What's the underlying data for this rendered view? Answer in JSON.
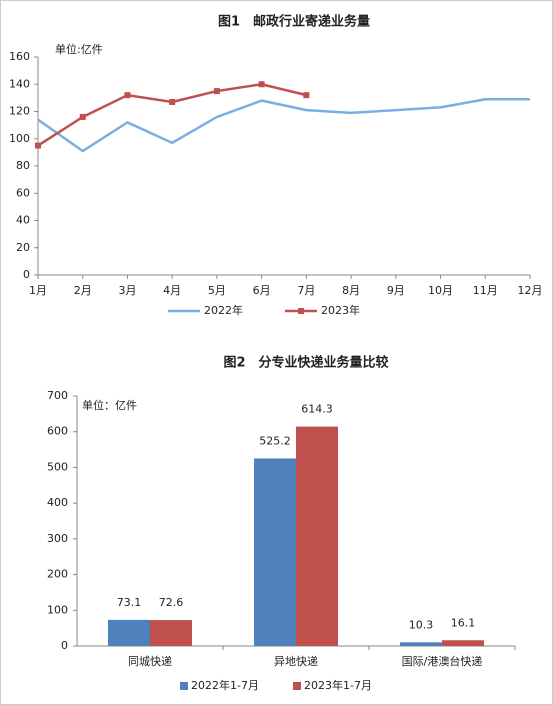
{
  "chart_data": [
    {
      "type": "line",
      "title": "图1　邮政行业寄递业务量",
      "y_label": "单位:亿件",
      "categories": [
        "1月",
        "2月",
        "3月",
        "4月",
        "5月",
        "6月",
        "7月",
        "8月",
        "9月",
        "10月",
        "11月",
        "12月"
      ],
      "series": [
        {
          "name": "2022年",
          "color": "#7aaee3",
          "values": [
            114,
            91,
            112,
            97,
            116,
            128,
            121,
            119,
            121,
            123,
            129,
            129
          ]
        },
        {
          "name": "2023年",
          "color": "#c0504d",
          "values": [
            95,
            116,
            132,
            127,
            135,
            140,
            132,
            null,
            null,
            null,
            null,
            null
          ]
        }
      ],
      "ylim": [
        0,
        160
      ],
      "yticks": [
        0,
        20,
        40,
        60,
        80,
        100,
        120,
        140,
        160
      ],
      "grid": false
    },
    {
      "type": "bar",
      "title": "图2　分专业快递业务量比较",
      "y_label": "单位：亿件",
      "categories": [
        "同城快递",
        "异地快递",
        "国际/港澳台快递"
      ],
      "series": [
        {
          "name": "2022年1-7月",
          "color": "#4f81bd",
          "values": [
            73.1,
            525.2,
            10.3
          ]
        },
        {
          "name": "2023年1-7月",
          "color": "#c0504d",
          "values": [
            72.6,
            614.3,
            16.1
          ]
        }
      ],
      "ylim": [
        0,
        700
      ],
      "yticks": [
        0,
        100,
        200,
        300,
        400,
        500,
        600,
        700
      ],
      "grid": false
    }
  ]
}
